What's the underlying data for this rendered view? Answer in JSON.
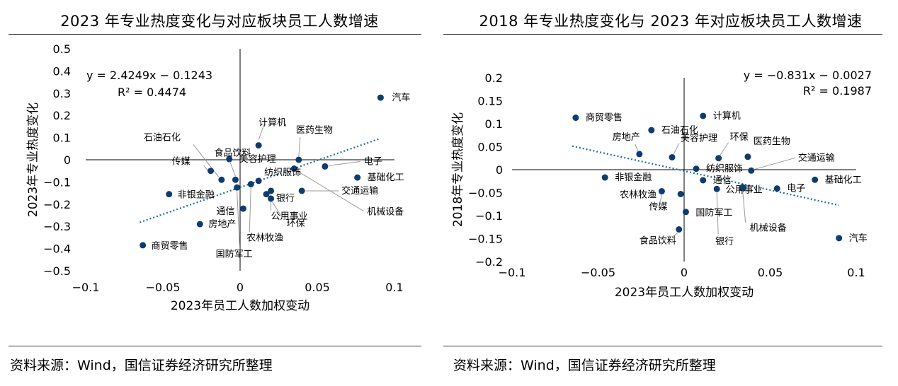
{
  "colors": {
    "point": "#0e3c6e",
    "trend": "#1f6f9a",
    "leader": "#999999",
    "axis": "#000000"
  },
  "source_text": "资料来源：Wind，国信证券经济研究所整理",
  "chart_data": [
    {
      "type": "scatter",
      "title": "2023 年专业热度变化与对应板块员工人数增速",
      "xlabel": "2023年员工人数加权变动",
      "ylabel": "2023年专业热度变化",
      "xlim": [
        -0.1,
        0.1
      ],
      "ylim": [
        -0.5,
        0.5
      ],
      "xticks": [
        -0.1,
        -0.05,
        0,
        0.05,
        0.1
      ],
      "yticks": [
        0.5,
        0.4,
        0.3,
        0.2,
        0.1,
        0,
        -0.1,
        -0.2,
        -0.3,
        -0.4,
        -0.5
      ],
      "xtick_labels": [
        "−0.1",
        "−0.05",
        "0",
        "0.05",
        "0.1"
      ],
      "ytick_labels": [
        "0.5",
        "0.4",
        "0.3",
        "0.2",
        "0.1",
        "0",
        "−0.1",
        "−0.2",
        "−0.3",
        "−0.4",
        "−0.5"
      ],
      "equation": "y = 2.4249x − 0.1243",
      "r2": "R² = 0.4474",
      "trendline": {
        "slope": 2.4249,
        "intercept": -0.1243,
        "x_range": [
          -0.065,
          0.09
        ]
      },
      "points": [
        {
          "name": "汽车",
          "x": 0.091,
          "y": 0.28
        },
        {
          "name": "计算机",
          "x": 0.012,
          "y": 0.065
        },
        {
          "name": "医药生物",
          "x": 0.038,
          "y": 0.0
        },
        {
          "name": "电子",
          "x": 0.055,
          "y": -0.03
        },
        {
          "name": "基础化工",
          "x": 0.076,
          "y": -0.08
        },
        {
          "name": "交通运输",
          "x": 0.04,
          "y": -0.14
        },
        {
          "name": "机械设备",
          "x": 0.035,
          "y": -0.04
        },
        {
          "name": "公用事业",
          "x": 0.02,
          "y": -0.14
        },
        {
          "name": "环保",
          "x": 0.02,
          "y": -0.175
        },
        {
          "name": "银行",
          "x": 0.017,
          "y": -0.155
        },
        {
          "name": "纺织服饰",
          "x": 0.012,
          "y": -0.095
        },
        {
          "name": "农林牧渔",
          "x": 0.007,
          "y": -0.11
        },
        {
          "name": "美容护理",
          "x": -0.007,
          "y": 0.003
        },
        {
          "name": "食品饮料",
          "x": -0.003,
          "y": -0.09
        },
        {
          "name": "石油石化",
          "x": -0.012,
          "y": -0.09
        },
        {
          "name": "传媒",
          "x": -0.019,
          "y": -0.05
        },
        {
          "name": "通信",
          "x": 0.002,
          "y": -0.22
        },
        {
          "name": "国防军工",
          "x": -0.002,
          "y": -0.125
        },
        {
          "name": "非银金融",
          "x": -0.046,
          "y": -0.155
        },
        {
          "name": "房地产",
          "x": -0.026,
          "y": -0.29
        },
        {
          "name": "商贸零售",
          "x": -0.063,
          "y": -0.385
        }
      ]
    },
    {
      "type": "scatter",
      "title": "2018 年专业热度变化与 2023 年对应板块员工人数增速",
      "xlabel": "2023年员工人数加权变动",
      "ylabel": "2018年专业热度变化",
      "xlim": [
        -0.1,
        0.1
      ],
      "ylim": [
        -0.2,
        0.2
      ],
      "xticks": [
        -0.1,
        -0.05,
        0,
        0.05,
        0.1
      ],
      "yticks": [
        0.2,
        0.15,
        0.1,
        0.05,
        0,
        -0.05,
        -0.1,
        -0.15,
        -0.2
      ],
      "xtick_labels": [
        "−0.1",
        "−0.05",
        "0",
        "0.05",
        "0.1"
      ],
      "ytick_labels": [
        "0.2",
        "0.15",
        "0.1",
        "0.05",
        "0",
        "−0.05",
        "−0.1",
        "−0.15",
        "−0.2"
      ],
      "equation": "y = −0.831x − 0.0027",
      "r2": "R² = 0.1987",
      "trendline": {
        "slope": -0.831,
        "intercept": -0.0027,
        "x_range": [
          -0.065,
          0.09
        ]
      },
      "points": [
        {
          "name": "商贸零售",
          "x": -0.063,
          "y": 0.113
        },
        {
          "name": "石油石化",
          "x": -0.019,
          "y": 0.086
        },
        {
          "name": "计算机",
          "x": 0.011,
          "y": 0.117
        },
        {
          "name": "房地产",
          "x": -0.026,
          "y": 0.034
        },
        {
          "name": "美容护理",
          "x": -0.007,
          "y": 0.027
        },
        {
          "name": "环保",
          "x": 0.02,
          "y": 0.025
        },
        {
          "name": "医药生物",
          "x": 0.037,
          "y": 0.028
        },
        {
          "name": "交通运输",
          "x": 0.039,
          "y": -0.002
        },
        {
          "name": "纺织服饰",
          "x": 0.007,
          "y": 0.002
        },
        {
          "name": "非银金融",
          "x": -0.046,
          "y": -0.017
        },
        {
          "name": "基础化工",
          "x": 0.076,
          "y": -0.022
        },
        {
          "name": "电子",
          "x": 0.054,
          "y": -0.041
        },
        {
          "name": "公用事业",
          "x": 0.034,
          "y": -0.041
        },
        {
          "name": "银行",
          "x": 0.019,
          "y": -0.042
        },
        {
          "name": "通信",
          "x": 0.011,
          "y": -0.023
        },
        {
          "name": "传媒",
          "x": -0.013,
          "y": -0.047
        },
        {
          "name": "机械设备",
          "x": 0.034,
          "y": -0.038
        },
        {
          "name": "农林牧渔",
          "x": -0.002,
          "y": -0.053
        },
        {
          "name": "国防军工",
          "x": 0.001,
          "y": -0.092
        },
        {
          "name": "食品饮料",
          "x": -0.003,
          "y": -0.13
        },
        {
          "name": "汽车",
          "x": 0.09,
          "y": -0.149
        }
      ]
    }
  ]
}
